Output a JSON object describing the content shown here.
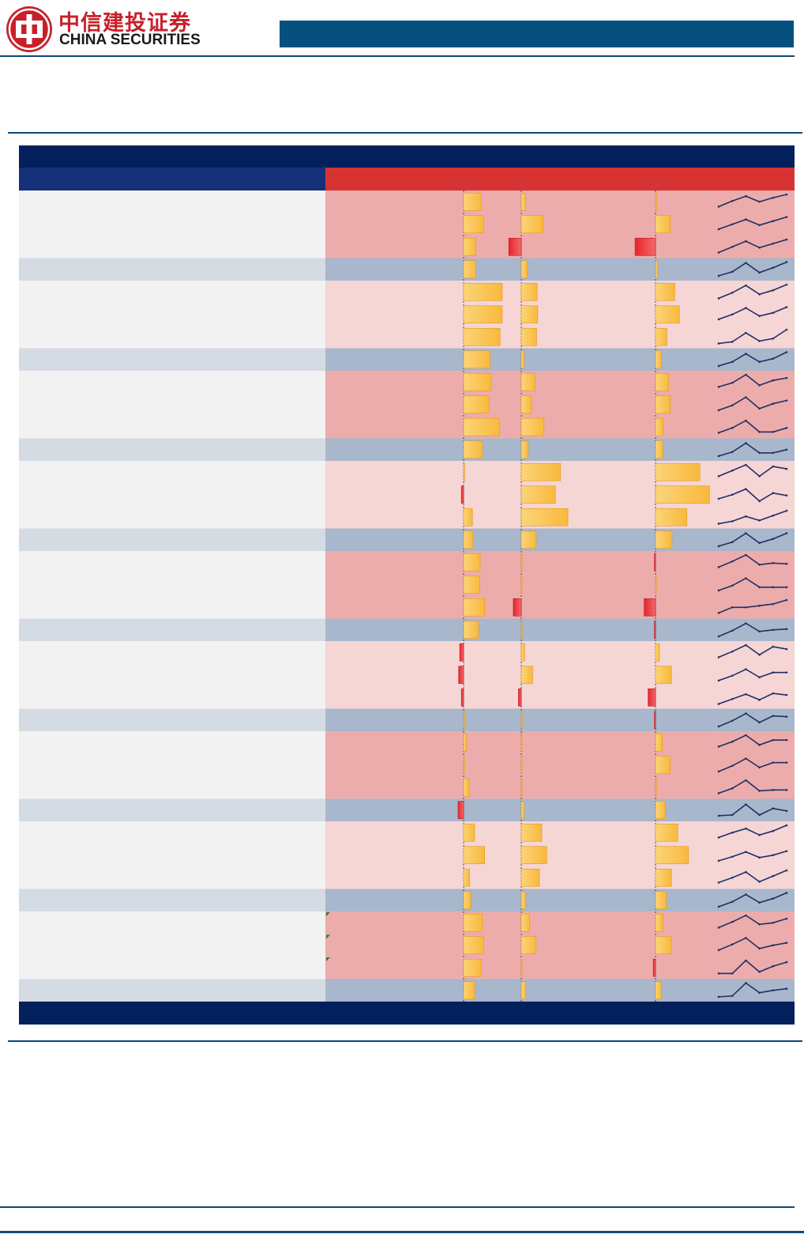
{
  "brand": {
    "name_cn": "中信建投证券",
    "name_en": "CHINA SECURITIES"
  },
  "colors": {
    "logo_red": "#c8202a",
    "header_band": "#05507f",
    "rule": "#0e4a78",
    "table_title_bar": "#031f5c",
    "left_header": "#16317a",
    "right_header": "#d63332",
    "row_strong": "#edacac",
    "row_light": "#f6d5d5",
    "label_strong": "#f2f2f2",
    "label_light": "#f2f2f2",
    "subtotal_label": "#d5dbe3",
    "subtotal_data": "#a8b7cb",
    "bar_positive": "#f8b93c",
    "bar_negative": "#e8252e",
    "sparkline": "#1f3164"
  },
  "table": {
    "groups": [
      {
        "rows": [
          {
            "b1": 0.32,
            "b2": 0.08,
            "b3": 0.02,
            "spark": [
              0.2,
              0.55,
              0.85,
              0.5,
              0.75,
              0.95
            ]
          },
          {
            "b1": 0.36,
            "b2": 0.38,
            "b3": 0.26,
            "spark": [
              0.2,
              0.5,
              0.8,
              0.45,
              0.7,
              0.95
            ]
          },
          {
            "b1": 0.22,
            "b2": -0.22,
            "b3": -0.36,
            "spark": [
              0.15,
              0.5,
              0.85,
              0.45,
              0.7,
              0.95
            ]
          }
        ],
        "subtotal": {
          "b1": 0.22,
          "b2": 0.11,
          "b3": 0.04,
          "spark": [
            0.1,
            0.35,
            0.9,
            0.3,
            0.6,
            0.95
          ]
        }
      },
      {
        "rows": [
          {
            "b1": 0.7,
            "b2": 0.28,
            "b3": 0.34,
            "spark": [
              0.1,
              0.45,
              0.9,
              0.35,
              0.6,
              0.95
            ]
          },
          {
            "b1": 0.7,
            "b2": 0.29,
            "b3": 0.42,
            "spark": [
              0.2,
              0.5,
              0.9,
              0.4,
              0.6,
              0.95
            ]
          },
          {
            "b1": 0.66,
            "b2": 0.27,
            "b3": 0.2,
            "spark": [
              0.1,
              0.2,
              0.75,
              0.25,
              0.4,
              0.95
            ]
          }
        ],
        "subtotal": {
          "b1": 0.48,
          "b2": 0.05,
          "b3": 0.1,
          "spark": [
            0.1,
            0.35,
            0.85,
            0.35,
            0.55,
            0.95
          ]
        }
      },
      {
        "rows": [
          {
            "b1": 0.5,
            "b2": 0.24,
            "b3": 0.23,
            "spark": [
              0.2,
              0.45,
              0.95,
              0.3,
              0.6,
              0.75
            ]
          },
          {
            "b1": 0.46,
            "b2": 0.18,
            "b3": 0.26,
            "spark": [
              0.15,
              0.45,
              0.95,
              0.25,
              0.55,
              0.75
            ]
          },
          {
            "b1": 0.65,
            "b2": 0.4,
            "b3": 0.14,
            "spark": [
              0.15,
              0.45,
              0.9,
              0.2,
              0.2,
              0.45
            ]
          }
        ],
        "subtotal": {
          "b1": 0.34,
          "b2": 0.12,
          "b3": 0.13,
          "spark": [
            0.1,
            0.35,
            0.9,
            0.3,
            0.3,
            0.5
          ]
        }
      },
      {
        "rows": [
          {
            "b1": 0.02,
            "b2": 0.69,
            "b3": 0.78,
            "spark": [
              0.25,
              0.6,
              0.95,
              0.25,
              0.85,
              0.7
            ]
          },
          {
            "b1": -0.04,
            "b2": 0.6,
            "b3": 0.95,
            "spark": [
              0.25,
              0.5,
              0.85,
              0.1,
              0.6,
              0.45
            ]
          },
          {
            "b1": 0.16,
            "b2": 0.82,
            "b3": 0.55,
            "spark": [
              0.1,
              0.25,
              0.55,
              0.3,
              0.6,
              0.9
            ]
          }
        ],
        "subtotal": {
          "b1": 0.17,
          "b2": 0.26,
          "b3": 0.29,
          "spark": [
            0.1,
            0.35,
            0.9,
            0.3,
            0.55,
            0.9
          ]
        }
      },
      {
        "rows": [
          {
            "b1": 0.3,
            "b2": 0.0,
            "b3": -0.02,
            "spark": [
              0.2,
              0.55,
              0.95,
              0.35,
              0.45,
              0.4
            ]
          },
          {
            "b1": 0.29,
            "b2": 0.0,
            "b3": 0.0,
            "spark": [
              0.15,
              0.45,
              0.9,
              0.35,
              0.35,
              0.35
            ]
          },
          {
            "b1": 0.38,
            "b2": -0.14,
            "b3": -0.2,
            "spark": [
              0.15,
              0.5,
              0.5,
              0.6,
              0.7,
              0.95
            ]
          }
        ],
        "subtotal": {
          "b1": 0.27,
          "b2": 0.0,
          "b3": -0.02,
          "spark": [
            0.1,
            0.45,
            0.9,
            0.4,
            0.5,
            0.55
          ]
        }
      },
      {
        "rows": [
          {
            "b1": -0.07,
            "b2": 0.06,
            "b3": 0.07,
            "spark": [
              0.2,
              0.55,
              0.95,
              0.35,
              0.85,
              0.7
            ]
          },
          {
            "b1": -0.09,
            "b2": 0.2,
            "b3": 0.28,
            "spark": [
              0.15,
              0.45,
              0.85,
              0.35,
              0.65,
              0.65
            ]
          },
          {
            "b1": -0.04,
            "b2": -0.05,
            "b3": -0.13,
            "spark": [
              0.1,
              0.4,
              0.7,
              0.35,
              0.75,
              0.65
            ]
          }
        ],
        "subtotal": {
          "b1": 0.0,
          "b2": 0.02,
          "b3": -0.02,
          "spark": [
            0.1,
            0.45,
            0.9,
            0.35,
            0.75,
            0.7
          ]
        }
      },
      {
        "rows": [
          {
            "b1": 0.05,
            "b2": 0.0,
            "b3": 0.12,
            "spark": [
              0.25,
              0.55,
              0.95,
              0.35,
              0.65,
              0.65
            ]
          },
          {
            "b1": 0.0,
            "b2": 0.0,
            "b3": 0.26,
            "spark": [
              0.1,
              0.45,
              0.9,
              0.35,
              0.65,
              0.65
            ]
          },
          {
            "b1": 0.1,
            "b2": 0.0,
            "b3": 0.0,
            "spark": [
              0.15,
              0.45,
              0.95,
              0.3,
              0.35,
              0.35
            ]
          }
        ],
        "subtotal": {
          "b1": -0.1,
          "b2": 0.05,
          "b3": 0.17,
          "spark": [
            0.15,
            0.2,
            0.85,
            0.2,
            0.6,
            0.45
          ]
        }
      },
      {
        "rows": [
          {
            "b1": 0.2,
            "b2": 0.36,
            "b3": 0.39,
            "spark": [
              0.2,
              0.5,
              0.75,
              0.35,
              0.6,
              0.95
            ]
          },
          {
            "b1": 0.38,
            "b2": 0.45,
            "b3": 0.58,
            "spark": [
              0.15,
              0.4,
              0.7,
              0.35,
              0.5,
              0.75
            ]
          },
          {
            "b1": 0.11,
            "b2": 0.32,
            "b3": 0.28,
            "spark": [
              0.2,
              0.5,
              0.85,
              0.25,
              0.6,
              0.95
            ]
          }
        ],
        "subtotal": {
          "b1": 0.13,
          "b2": 0.08,
          "b3": 0.19,
          "spark": [
            0.1,
            0.4,
            0.85,
            0.35,
            0.6,
            0.95
          ]
        }
      },
      {
        "rows": [
          {
            "b1": 0.34,
            "b2": 0.15,
            "b3": 0.13,
            "spark": [
              0.2,
              0.55,
              0.95,
              0.4,
              0.5,
              0.75
            ]
          },
          {
            "b1": 0.36,
            "b2": 0.26,
            "b3": 0.28,
            "spark": [
              0.2,
              0.55,
              0.95,
              0.3,
              0.5,
              0.65
            ]
          },
          {
            "b1": 0.32,
            "b2": 0.0,
            "b3": -0.04,
            "spark": [
              0.15,
              0.15,
              0.95,
              0.25,
              0.6,
              0.85
            ]
          }
        ],
        "subtotal": {
          "b1": 0.2,
          "b2": 0.08,
          "b3": 0.1,
          "spark": [
            0.1,
            0.15,
            0.95,
            0.35,
            0.5,
            0.6
          ]
        }
      }
    ]
  }
}
